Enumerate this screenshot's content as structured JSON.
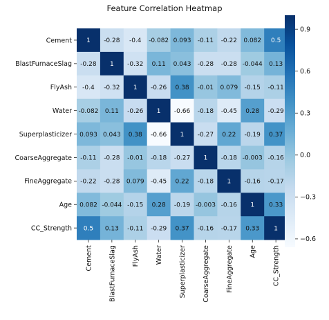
{
  "chart_data": {
    "type": "heatmap",
    "title": "Feature Correlation Heatmap",
    "row_labels": [
      "Cement",
      "BlastFurnaceSlag",
      "FlyAsh",
      "Water",
      "Superplasticizer",
      "CoarseAggregate",
      "FineAggregate",
      "Age",
      "CC_Strength"
    ],
    "col_labels": [
      "Cement",
      "BlastFurnaceSlag",
      "FlyAsh",
      "Water",
      "Superplasticizer",
      "CoarseAggregate",
      "FineAggregate",
      "Age",
      "CC_Strength"
    ],
    "values": [
      [
        1,
        -0.28,
        -0.4,
        -0.082,
        0.093,
        -0.11,
        -0.22,
        0.082,
        0.5
      ],
      [
        -0.28,
        1,
        -0.32,
        0.11,
        0.043,
        -0.28,
        -0.28,
        -0.044,
        0.13
      ],
      [
        -0.4,
        -0.32,
        1,
        -0.26,
        0.38,
        -0.01,
        0.079,
        -0.15,
        -0.11
      ],
      [
        -0.082,
        0.11,
        -0.26,
        1,
        -0.66,
        -0.18,
        -0.45,
        0.28,
        -0.29
      ],
      [
        0.093,
        0.043,
        0.38,
        -0.66,
        1,
        -0.27,
        0.22,
        -0.19,
        0.37
      ],
      [
        -0.11,
        -0.28,
        -0.01,
        -0.18,
        -0.27,
        1,
        -0.18,
        -0.003,
        -0.16
      ],
      [
        -0.22,
        -0.28,
        0.079,
        -0.45,
        0.22,
        -0.18,
        1,
        -0.16,
        -0.17
      ],
      [
        0.082,
        -0.044,
        -0.15,
        0.28,
        -0.19,
        -0.003,
        -0.16,
        1,
        0.33
      ],
      [
        0.5,
        0.13,
        -0.11,
        -0.29,
        0.37,
        -0.16,
        -0.17,
        0.33,
        1
      ]
    ],
    "value_labels": [
      [
        "1",
        "-0.28",
        "-0.4",
        "-0.082",
        "0.093",
        "-0.11",
        "-0.22",
        "0.082",
        "0.5"
      ],
      [
        "-0.28",
        "1",
        "-0.32",
        "0.11",
        "0.043",
        "-0.28",
        "-0.28",
        "-0.044",
        "0.13"
      ],
      [
        "-0.4",
        "-0.32",
        "1",
        "-0.26",
        "0.38",
        "-0.01",
        "0.079",
        "-0.15",
        "-0.11"
      ],
      [
        "-0.082",
        "0.11",
        "-0.26",
        "1",
        "-0.66",
        "-0.18",
        "-0.45",
        "0.28",
        "-0.29"
      ],
      [
        "0.093",
        "0.043",
        "0.38",
        "-0.66",
        "1",
        "-0.27",
        "0.22",
        "-0.19",
        "0.37"
      ],
      [
        "-0.11",
        "-0.28",
        "-0.01",
        "-0.18",
        "-0.27",
        "1",
        "-0.18",
        "-0.003",
        "-0.16"
      ],
      [
        "-0.22",
        "-0.28",
        "0.079",
        "-0.45",
        "0.22",
        "-0.18",
        "1",
        "-0.16",
        "-0.17"
      ],
      [
        "0.082",
        "-0.044",
        "-0.15",
        "0.28",
        "-0.19",
        "-0.003",
        "-0.16",
        "1",
        "0.33"
      ],
      [
        "0.5",
        "0.13",
        "-0.11",
        "-0.29",
        "0.37",
        "-0.16",
        "-0.17",
        "0.33",
        "1"
      ]
    ],
    "colormap": "Blues",
    "colormap_stops": [
      "#f7fbff",
      "#deebf7",
      "#c6dbef",
      "#9ecae1",
      "#6baed6",
      "#4292c6",
      "#2171b5",
      "#08519c",
      "#08306b"
    ],
    "vmin": -0.66,
    "vmax": 1,
    "colorbar": {
      "ticks": [
        0.9,
        0.6,
        0.3,
        0.0,
        -0.3,
        -0.6
      ],
      "tick_labels": [
        "0.9",
        "0.6",
        "0.3",
        "0.0",
        "−0.3",
        "−0.6"
      ]
    },
    "grid": false,
    "annotations": true
  }
}
